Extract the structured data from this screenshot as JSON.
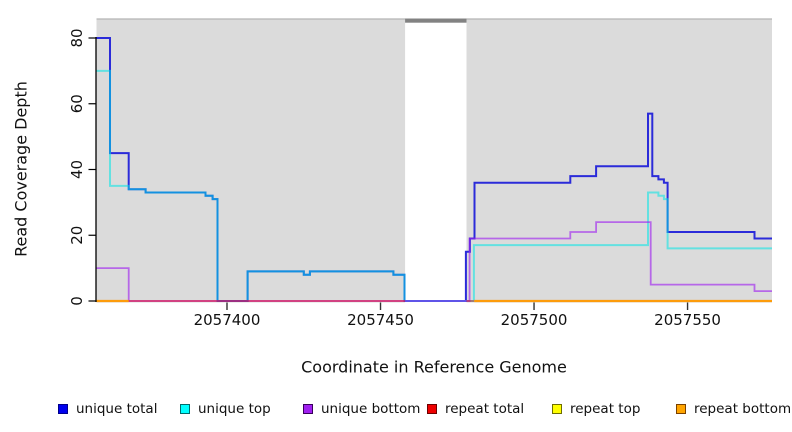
{
  "chart_data": {
    "type": "line",
    "step": true,
    "title": "",
    "xlabel": "Coordinate in Reference Genome",
    "ylabel": "Read Coverage Depth",
    "xlim": [
      2057357.5,
      2057577.5
    ],
    "ylim": [
      0,
      86
    ],
    "x_ticks": [
      2057400,
      2057450,
      2057500,
      2057550
    ],
    "y_ticks": [
      0,
      20,
      40,
      60,
      80
    ],
    "grid": false,
    "legend_position": "bottom",
    "shaded_regions": [
      {
        "x": [
          2057357.5,
          2057458
        ],
        "color": "#DBDBDB"
      },
      {
        "x": [
          2057478,
          2057577.5
        ],
        "color": "#DBDBDB"
      }
    ],
    "gap_marker": {
      "x": [
        2057458,
        2057478
      ],
      "color": "#828282"
    },
    "top_border_color": "#B5B5B5",
    "series": [
      {
        "name": "unique total",
        "color": "#2B2BD9",
        "opacity": 1,
        "width": 2,
        "points": [
          [
            2057357.5,
            80
          ],
          [
            2057361.9,
            45
          ],
          [
            2057368,
            34
          ],
          [
            2057373.5,
            33
          ],
          [
            2057393,
            32
          ],
          [
            2057395.3,
            31
          ],
          [
            2057396.9,
            0
          ],
          [
            2057406.7,
            9
          ],
          [
            2057425,
            8
          ],
          [
            2057427,
            9
          ],
          [
            2057454.2,
            8
          ],
          [
            2057457.8,
            0
          ],
          [
            2057477.8,
            15
          ],
          [
            2057479.1,
            19
          ],
          [
            2057480.6,
            36
          ],
          [
            2057511.8,
            38
          ],
          [
            2057520.2,
            41
          ],
          [
            2057537.1,
            57
          ],
          [
            2057538.5,
            38
          ],
          [
            2057540.5,
            37
          ],
          [
            2057542.3,
            36
          ],
          [
            2057543.5,
            21
          ],
          [
            2057571.8,
            19
          ],
          [
            2057577.5,
            19
          ]
        ]
      },
      {
        "name": "unique top",
        "color": "#00E6E6",
        "opacity": 0.55,
        "width": 2,
        "points": [
          [
            2057357.5,
            70
          ],
          [
            2057361.9,
            35
          ],
          [
            2057368,
            34
          ],
          [
            2057373.5,
            33
          ],
          [
            2057393,
            32
          ],
          [
            2057395.3,
            31
          ],
          [
            2057396.9,
            0
          ],
          [
            2057406.7,
            9
          ],
          [
            2057425,
            8
          ],
          [
            2057427,
            9
          ],
          [
            2057454.2,
            8
          ],
          [
            2057457.8,
            0
          ],
          [
            2057480.4,
            17
          ],
          [
            2057537.1,
            33
          ],
          [
            2057540.5,
            32
          ],
          [
            2057542.3,
            31
          ],
          [
            2057543.5,
            16
          ],
          [
            2057577.5,
            16
          ]
        ]
      },
      {
        "name": "unique bottom",
        "color": "#A020F0",
        "opacity": 0.62,
        "width": 1.8,
        "points": [
          [
            2057357.5,
            10
          ],
          [
            2057368,
            0
          ],
          [
            2057479,
            19
          ],
          [
            2057511.8,
            21
          ],
          [
            2057520.2,
            24
          ],
          [
            2057538,
            5
          ],
          [
            2057571.8,
            3
          ],
          [
            2057577.5,
            3
          ]
        ]
      },
      {
        "name": "repeat total",
        "color": "#EE0000",
        "opacity": 0.5,
        "width": 1.6,
        "render": "baseline",
        "points": [
          [
            2057357.5,
            0
          ],
          [
            2057577.5,
            0
          ]
        ]
      },
      {
        "name": "repeat top",
        "color": "#FFFF00",
        "opacity": 0.9,
        "width": 1.6,
        "render": "baseline",
        "points": [
          [
            2057357.5,
            0
          ],
          [
            2057577.5,
            0
          ]
        ]
      },
      {
        "name": "repeat bottom",
        "color": "#FF9900",
        "opacity": 0.95,
        "width": 2.2,
        "render": "baseline",
        "points": [
          [
            2057357.5,
            0
          ],
          [
            2057577.5,
            0
          ]
        ]
      }
    ],
    "baseline_segments": [
      {
        "series": "repeat bottom",
        "color": "#FF9900",
        "opacity": 0.95,
        "width": 2.2,
        "x": [
          2057357.5,
          2057368
        ]
      },
      {
        "series": "repeat total",
        "color": "#EE0000",
        "opacity": 0.5,
        "width": 1.8,
        "x": [
          2057368,
          2057458
        ]
      },
      {
        "series": "repeat total",
        "color": "#EE0000",
        "opacity": 0.5,
        "width": 1.8,
        "x": [
          2057478,
          2057480.5
        ]
      },
      {
        "series": "repeat bottom",
        "color": "#FF9900",
        "opacity": 0.95,
        "width": 2.2,
        "x": [
          2057480.5,
          2057577.5
        ]
      }
    ],
    "legend": [
      {
        "label": "unique total",
        "fill": "#0000EE",
        "border": "#00008B"
      },
      {
        "label": "unique top",
        "fill": "#00FFFF",
        "border": "#006B6B"
      },
      {
        "label": "unique bottom",
        "fill": "#A020F0",
        "border": "#38005C"
      },
      {
        "label": "repeat total",
        "fill": "#EE0000",
        "border": "#6E0000"
      },
      {
        "label": "repeat top",
        "fill": "#FFFF00",
        "border": "#6E6E00"
      },
      {
        "label": "repeat bottom",
        "fill": "#FFA500",
        "border": "#7A4100"
      }
    ]
  }
}
